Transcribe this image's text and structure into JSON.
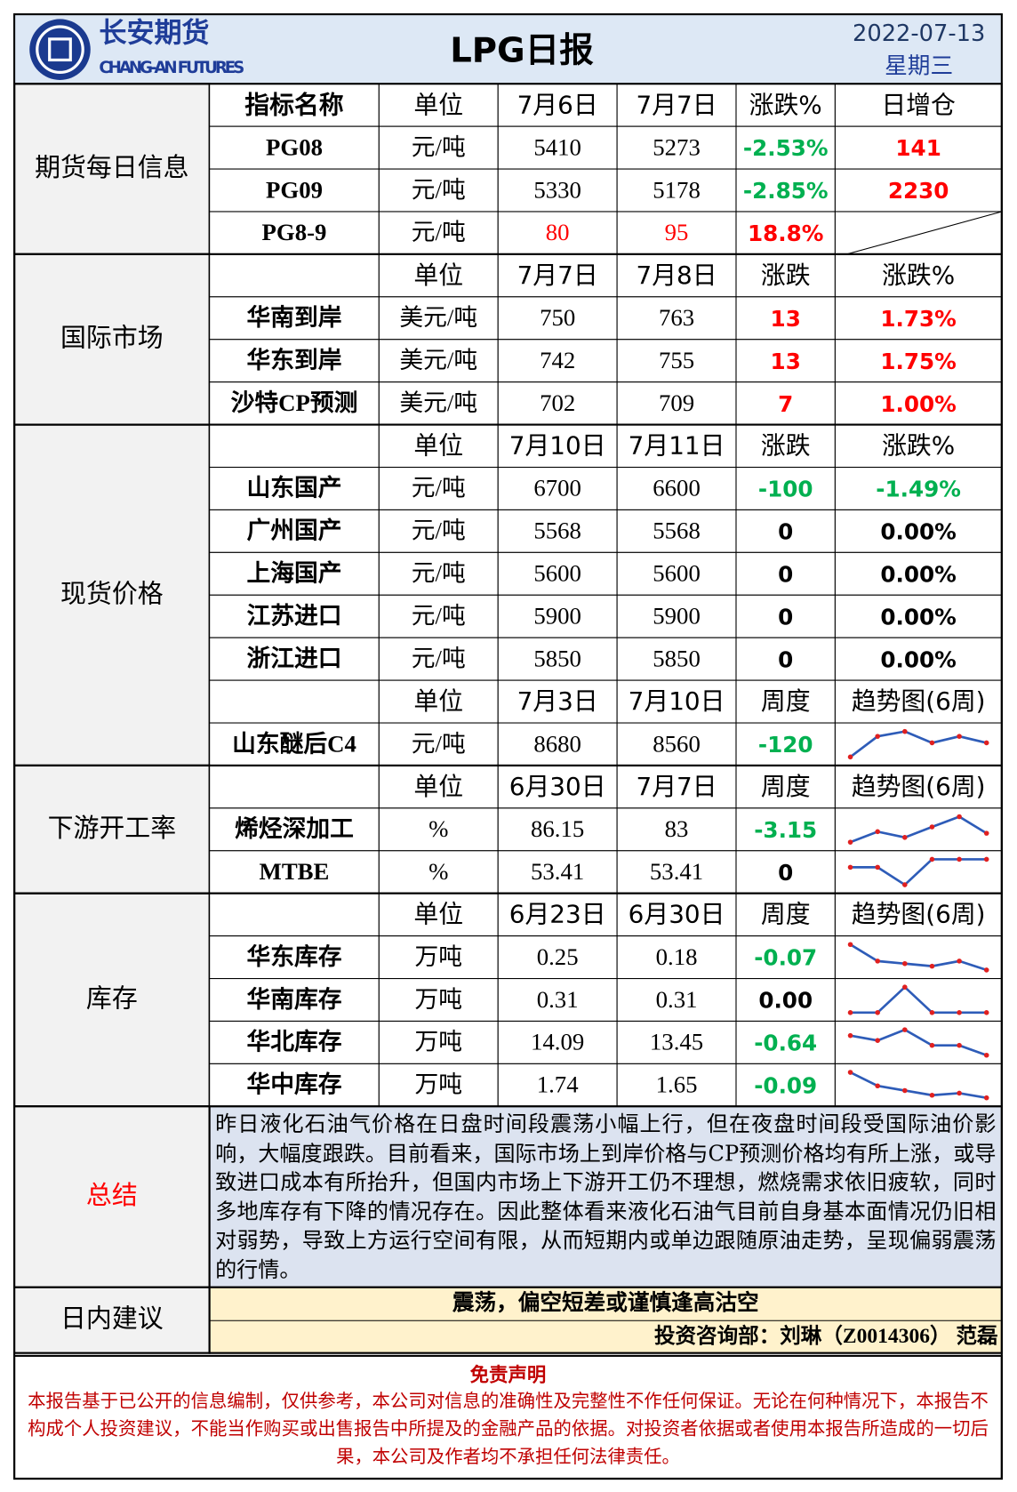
{
  "header": {
    "company": "长安期货",
    "company_en": "CHANG-AN FUTURES",
    "title": "LPG日报",
    "date": "2022-07-13",
    "weekday": "星期三"
  },
  "sections": [
    {
      "label": "期货每日信息",
      "tables": [
        {
          "header": [
            "指标名称",
            "单位",
            "7月6日",
            "7月7日",
            "涨跌%",
            "日增仓"
          ],
          "rows": [
            {
              "cells": [
                "PG08",
                "元/吨",
                "5410",
                "5273",
                "-2.53%",
                "141"
              ]
            },
            {
              "cells": [
                "PG09",
                "元/吨",
                "5330",
                "5178",
                "-2.85%",
                "2230"
              ]
            },
            {
              "cells": [
                "PG8-9",
                "元/吨",
                "80",
                "95",
                "18.8%"
              ]
            }
          ]
        }
      ]
    },
    {
      "label": "国际市场",
      "tables": [
        {
          "header": [
            "单位",
            "7月7日",
            "7月8日",
            "涨跌",
            "涨跌%"
          ],
          "rows": [
            {
              "cells": [
                "华南到岸",
                "美元/吨",
                "750",
                "763",
                "13",
                "1.73%"
              ]
            },
            {
              "cells": [
                "华东到岸",
                "美元/吨",
                "742",
                "755",
                "13",
                "1.75%"
              ]
            },
            {
              "cells": [
                "沙特CP预测",
                "美元/吨",
                "702",
                "709",
                "7",
                "1.00%"
              ]
            }
          ]
        }
      ]
    },
    {
      "label": "现货价格",
      "tables": [
        {
          "header": [
            "单位",
            "7月10日",
            "7月11日",
            "涨跌",
            "涨跌%"
          ],
          "rows": [
            {
              "cells": [
                "山东国产",
                "元/吨",
                "6700",
                "6600",
                "-100",
                "-1.49%"
              ]
            },
            {
              "cells": [
                "广州国产",
                "元/吨",
                "5568",
                "5568",
                "0",
                "0.00%"
              ]
            },
            {
              "cells": [
                "上海国产",
                "元/吨",
                "5600",
                "5600",
                "0",
                "0.00%"
              ]
            },
            {
              "cells": [
                "江苏进口",
                "元/吨",
                "5900",
                "5900",
                "0",
                "0.00%"
              ]
            },
            {
              "cells": [
                "浙江进口",
                "元/吨",
                "5850",
                "5850",
                "0",
                "0.00%"
              ]
            }
          ]
        },
        {
          "header": [
            "单位",
            "7月3日",
            "7月10日",
            "周度",
            "趋势图(6周)"
          ],
          "rows": [
            {
              "cells": [
                "山东醚后C4",
                "元/吨",
                "8680",
                "8560",
                "-120"
              ],
              "trend": [
                8300,
                8680,
                8770,
                8560,
                8680,
                8560
              ]
            }
          ]
        }
      ]
    },
    {
      "label": "下游开工率",
      "tables": [
        {
          "header": [
            "单位",
            "6月30日",
            "7月7日",
            "周度",
            "趋势图(6周)"
          ],
          "rows": [
            {
              "cells": [
                "烯烃深加工",
                "%",
                "86.15",
                "83",
                "-3.15"
              ],
              "trend": [
                81.3,
                83.3,
                82.2,
                84.2,
                86.15,
                83
              ]
            },
            {
              "cells": [
                "MTBE",
                "%",
                "53.41",
                "53.41",
                "0"
              ],
              "trend": [
                52.5,
                52.5,
                50.5,
                53.41,
                53.41,
                53.41
              ]
            }
          ]
        }
      ]
    },
    {
      "label": "库存",
      "tables": [
        {
          "header": [
            "单位",
            "6月23日",
            "6月30日",
            "周度",
            "趋势图(6周)"
          ],
          "rows": [
            {
              "cells": [
                "华东库存",
                "万吨",
                "0.25",
                "0.18",
                "-0.07"
              ],
              "trend": [
                0.38,
                0.25,
                0.23,
                0.21,
                0.25,
                0.18
              ]
            },
            {
              "cells": [
                "华南库存",
                "万吨",
                "0.31",
                "0.31",
                "0.00"
              ],
              "trend": [
                0.31,
                0.31,
                0.45,
                0.31,
                0.31,
                0.31
              ]
            },
            {
              "cells": [
                "华北库存",
                "万吨",
                "14.09",
                "13.45",
                "-0.64"
              ],
              "trend": [
                14.73,
                14.41,
                15.11,
                14.09,
                14.09,
                13.45
              ]
            },
            {
              "cells": [
                "华中库存",
                "万吨",
                "1.74",
                "1.65",
                "-0.09"
              ],
              "trend": [
                2.14,
                1.88,
                1.79,
                1.7,
                1.74,
                1.65
              ]
            }
          ]
        }
      ]
    }
  ],
  "summary": {
    "label": "总结",
    "text": "昨日液化石油气价格在日盘时间段震荡小幅上行，但在夜盘时间段受国际油价影响，大幅度跟跌。目前看来，国际市场上到岸价格与CP预测价格均有所上涨，或导致进口成本有所抬升，但国内市场上下游开工仍不理想，燃烧需求依旧疲软，同时多地库存有下降的情况存在。因此整体看来液化石油气目前自身基本面情况仍旧相对弱势，导致上方运行空间有限，从而短期内或单边跟随原油走势，呈现偏弱震荡的行情。"
  },
  "advice": {
    "label": "日内建议",
    "text": "震荡，偏空短差或谨慎逢高沽空",
    "analyst": "投资咨询部：刘琳（Z0014306） 范磊"
  },
  "disclaimer": {
    "title": "免责声明",
    "text": "本报告基于已公开的信息编制，仅供参考，本公司对信息的准确性及完整性不作任何保证。无论在何种情况下，本报告不构成个人投资建议，不能当作购买或出售报告中所提及的金融产品的依据。对投资者依据或者使用本报告所造成的一切后果，本公司及作者均不承担任何法律责任。"
  }
}
